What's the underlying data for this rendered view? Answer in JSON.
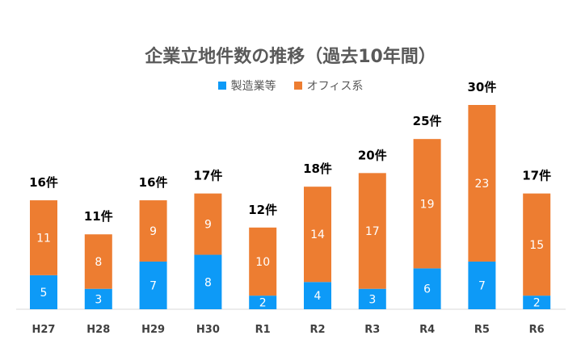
{
  "chart_data": {
    "type": "bar",
    "stacked": true,
    "title": "企業立地件数の推移（過去10年間）",
    "categories": [
      "H27",
      "H28",
      "H29",
      "H30",
      "R1",
      "R2",
      "R3",
      "R4",
      "R5",
      "R6"
    ],
    "series": [
      {
        "name": "製造業等",
        "color": "#0d9af7",
        "values": [
          5,
          3,
          7,
          8,
          2,
          4,
          3,
          6,
          7,
          2
        ]
      },
      {
        "name": "オフィス系",
        "color": "#ed7d31",
        "values": [
          11,
          8,
          9,
          9,
          10,
          14,
          17,
          19,
          23,
          15
        ]
      }
    ],
    "totals": [
      16,
      11,
      16,
      17,
      12,
      18,
      20,
      25,
      30,
      17
    ],
    "total_suffix": "件",
    "ylim": [
      0,
      30
    ],
    "legend_position": "top",
    "grid": false
  }
}
